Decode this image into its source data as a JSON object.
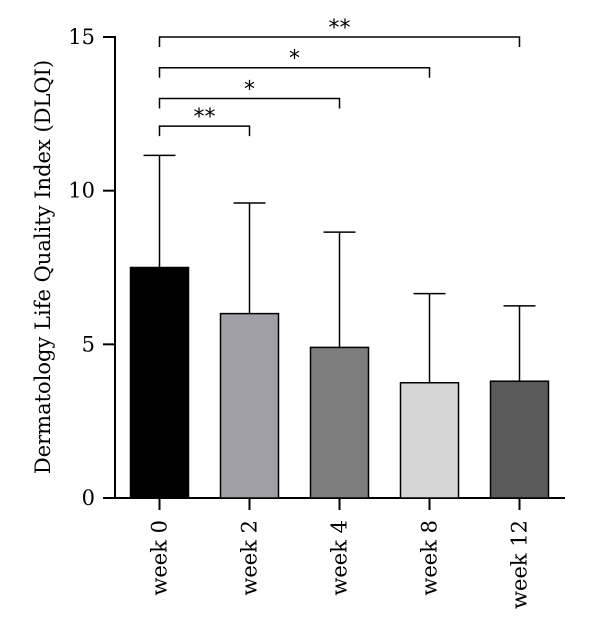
{
  "chart_data": {
    "type": "bar",
    "title": "",
    "xlabel": "",
    "ylabel": "Dermatology Life Quality Index (DLQI)",
    "ylim": [
      0,
      15
    ],
    "yticks": [
      0,
      5,
      10,
      15
    ],
    "categories": [
      "week 0",
      "week 2",
      "week 4",
      "week 8",
      "week 12"
    ],
    "values": [
      7.5,
      6.0,
      4.9,
      3.75,
      3.8
    ],
    "error_upper": [
      3.65,
      3.6,
      3.75,
      2.9,
      2.45
    ],
    "colors": [
      "#000000",
      "#a09ea6",
      "#7d7d7d",
      "#d6d6d6",
      "#5a5a5a"
    ],
    "significance": [
      {
        "from": "week 0",
        "to": "week 2",
        "label": "**",
        "y": 12.1
      },
      {
        "from": "week 0",
        "to": "week 4",
        "label": "*",
        "y": 13.0
      },
      {
        "from": "week 0",
        "to": "week 8",
        "label": "*",
        "y": 14.0
      },
      {
        "from": "week 0",
        "to": "week 12",
        "label": "**",
        "y": 15.0
      }
    ]
  }
}
